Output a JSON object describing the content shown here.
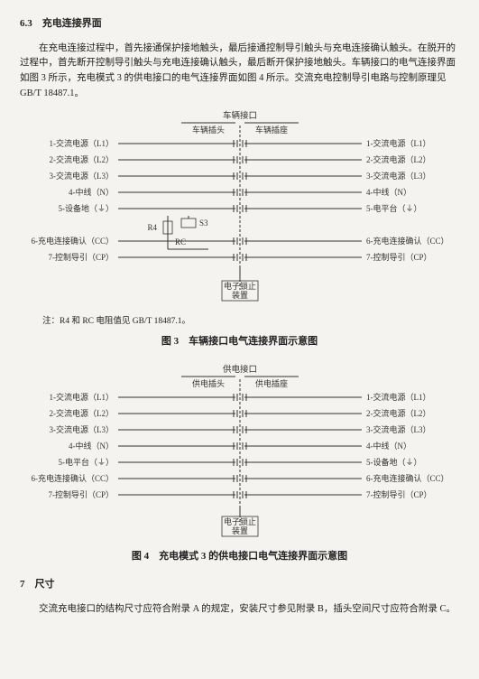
{
  "section": {
    "num": "6.3",
    "title": "充电连接界面"
  },
  "paragraph": "在充电连接过程中，首先接通保护接地触头，最后接通控制导引触头与充电连接确认触头。在脱开的过程中，首先断开控制导引触头与充电连接确认触头，最后断开保护接地触头。车辆接口的电气连接界面如图 3 所示，充电模式 3 的供电接口的电气连接界面如图 4 所示。交流充电控制导引电路与控制原理见 GB/T 18487.1。",
  "figure3": {
    "top_label": "车辆接口",
    "plug_label": "车辆插头",
    "socket_label": "车辆插座",
    "left_labels": [
      "1-交流电源（L1）",
      "2-交流电源（L2）",
      "3-交流电源（L3）",
      "4-中线（N）",
      "5-设备地（⏚）",
      "",
      "6-充电连接确认（CC）",
      "7-控制导引（CP）"
    ],
    "right_labels": [
      "1-交流电源（L1）",
      "2-交流电源（L2）",
      "3-交流电源（L3）",
      "4-中线（N）",
      "5-电平台（⏚）",
      "",
      "6-充电连接确认（CC）",
      "7-控制导引（CP）"
    ],
    "lock_box": "电子锁止\n装置",
    "r4": "R4",
    "s3": "S3",
    "rc": "RC",
    "note": "注：R4 和 RC 电阻值见 GB/T 18487.1。",
    "caption": "图 3　车辆接口电气连接界面示意图"
  },
  "figure4": {
    "top_label": "供电接口",
    "plug_label": "供电插头",
    "socket_label": "供电插座",
    "left_labels": [
      "1-交流电源（L1）",
      "2-交流电源（L2）",
      "3-交流电源（L3）",
      "4-中线（N）",
      "5-电平台（⏚）",
      "6-充电连接确认（CC）",
      "7-控制导引（CP）"
    ],
    "right_labels": [
      "1-交流电源（L1）",
      "2-交流电源（L2）",
      "3-交流电源（L3）",
      "4-中线（N）",
      "5-设备地（⏚）",
      "6-充电连接确认（CC）",
      "7-控制导引（CP）"
    ],
    "lock_box": "电子锁止\n装置",
    "caption": "图 4　充电模式 3 的供电接口电气连接界面示意图"
  },
  "section7": {
    "head": "7　尺寸",
    "para": "交流充电接口的结构尺寸应符合附录 A 的规定，安装尺寸参见附录 B，插头空间尺寸应符合附录 C。"
  }
}
